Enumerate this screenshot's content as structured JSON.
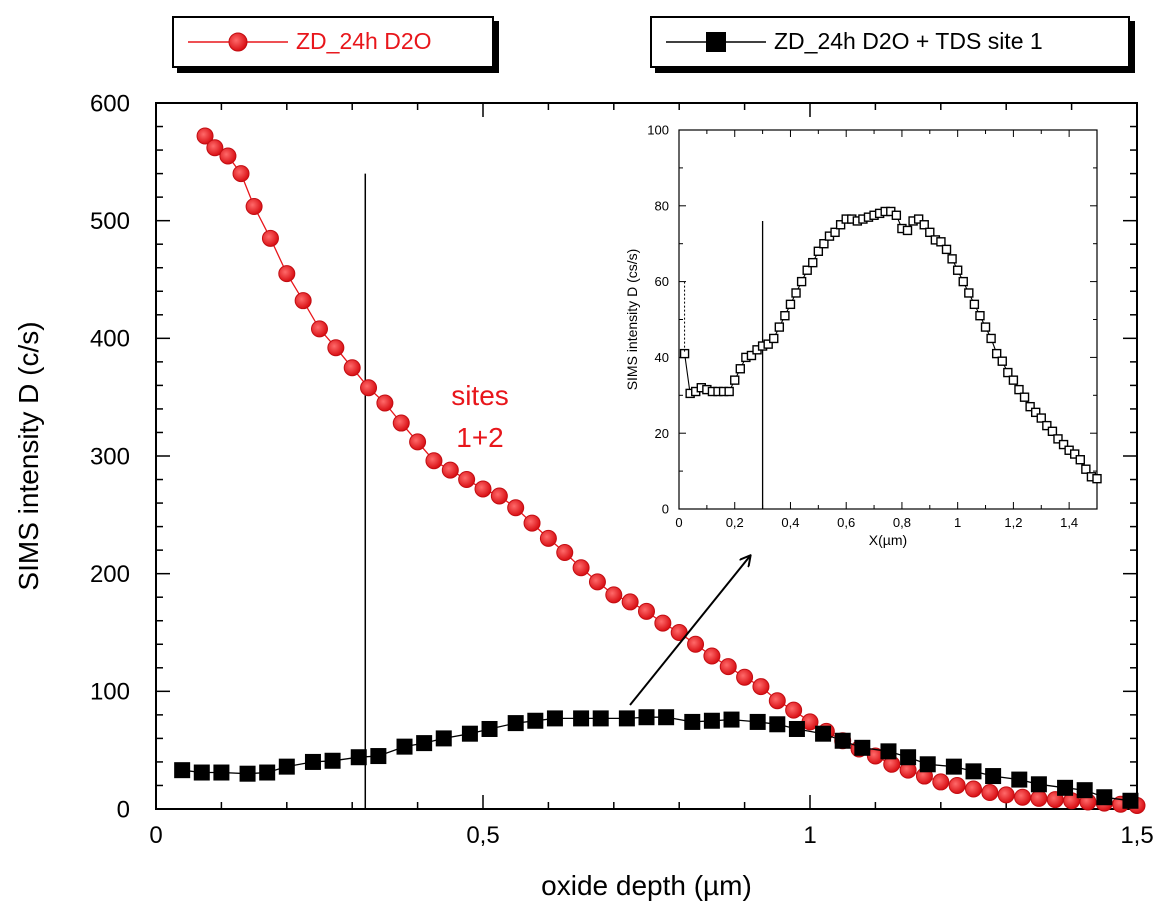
{
  "chart_data": [
    {
      "type": "scatter",
      "xlabel": "oxide depth (µm)",
      "ylabel": "SIMS intensity D (c/s)",
      "xlim": [
        0,
        1.5
      ],
      "ylim": [
        0,
        600
      ],
      "x_ticks": [
        0,
        0.5,
        1,
        1.5
      ],
      "x_tick_labels": [
        "0",
        "0,5",
        "1",
        "1,5"
      ],
      "y_ticks": [
        0,
        100,
        200,
        300,
        400,
        500,
        600
      ],
      "y_tick_labels": [
        "0",
        "100",
        "200",
        "300",
        "400",
        "500",
        "600"
      ],
      "vline_x": 0.32,
      "vline_top": 540,
      "annotation": [
        "sites",
        "1+2"
      ],
      "annotation_color": "#e8161b",
      "series": [
        {
          "name": "ZD_24h D2O",
          "color": "#e8161b",
          "marker": "circle",
          "x": [
            0.075,
            0.09,
            0.11,
            0.13,
            0.15,
            0.175,
            0.2,
            0.225,
            0.25,
            0.275,
            0.3,
            0.325,
            0.35,
            0.375,
            0.4,
            0.425,
            0.45,
            0.475,
            0.5,
            0.525,
            0.55,
            0.575,
            0.6,
            0.625,
            0.65,
            0.675,
            0.7,
            0.725,
            0.75,
            0.775,
            0.8,
            0.825,
            0.85,
            0.875,
            0.9,
            0.925,
            0.95,
            0.975,
            1.0,
            1.025,
            1.05,
            1.075,
            1.1,
            1.125,
            1.15,
            1.175,
            1.2,
            1.225,
            1.25,
            1.275,
            1.3,
            1.325,
            1.35,
            1.375,
            1.4,
            1.425,
            1.45,
            1.475,
            1.5
          ],
          "y": [
            572,
            562,
            555,
            540,
            512,
            485,
            455,
            432,
            408,
            392,
            375,
            358,
            345,
            328,
            312,
            296,
            288,
            280,
            272,
            266,
            256,
            243,
            230,
            218,
            205,
            193,
            182,
            176,
            168,
            158,
            150,
            140,
            130,
            121,
            112,
            104,
            92,
            84,
            74,
            66,
            58,
            51,
            45,
            38,
            33,
            28,
            23,
            20,
            17,
            14,
            12,
            10,
            9,
            8,
            7,
            6,
            5,
            4,
            3
          ]
        },
        {
          "name": "ZD_24h D2O + TDS site 1",
          "color": "#000000",
          "marker": "square",
          "x": [
            0.04,
            0.07,
            0.1,
            0.14,
            0.17,
            0.2,
            0.24,
            0.27,
            0.31,
            0.34,
            0.38,
            0.41,
            0.44,
            0.48,
            0.51,
            0.55,
            0.58,
            0.61,
            0.65,
            0.68,
            0.72,
            0.75,
            0.78,
            0.82,
            0.85,
            0.88,
            0.92,
            0.95,
            0.98,
            1.02,
            1.05,
            1.08,
            1.12,
            1.15,
            1.18,
            1.22,
            1.25,
            1.28,
            1.32,
            1.35,
            1.39,
            1.42,
            1.45,
            1.49
          ],
          "y": [
            33,
            31,
            31,
            30,
            31,
            36,
            40,
            41,
            44,
            45,
            53,
            56,
            60,
            64,
            68,
            73,
            75,
            77,
            77,
            77,
            77,
            78,
            78,
            74,
            75,
            76,
            74,
            72,
            68,
            64,
            58,
            52,
            49,
            44,
            38,
            36,
            32,
            28,
            25,
            21,
            18,
            16,
            10,
            7
          ]
        }
      ]
    },
    {
      "type": "scatter",
      "xlabel": "X(µm)",
      "ylabel": "SIMS intensity D (cs/s)",
      "xlim": [
        0,
        1.5
      ],
      "ylim": [
        0,
        100
      ],
      "x_ticks": [
        0,
        0.2,
        0.4,
        0.6,
        0.8,
        1,
        1.2,
        1.4
      ],
      "x_tick_labels": [
        "0",
        "0,2",
        "0,4",
        "0,6",
        "0,8",
        "1",
        "1,2",
        "1,4"
      ],
      "y_ticks": [
        0,
        20,
        40,
        60,
        80,
        100
      ],
      "y_tick_labels": [
        "0",
        "20",
        "40",
        "60",
        "80",
        "100"
      ],
      "vline_x": 0.3,
      "vline_top": 76,
      "series": [
        {
          "color": "#000000",
          "marker": "square-open",
          "x": [
            0.02,
            0.04,
            0.06,
            0.08,
            0.1,
            0.12,
            0.14,
            0.16,
            0.18,
            0.2,
            0.22,
            0.24,
            0.26,
            0.28,
            0.3,
            0.32,
            0.34,
            0.36,
            0.38,
            0.4,
            0.42,
            0.44,
            0.46,
            0.48,
            0.5,
            0.52,
            0.54,
            0.56,
            0.58,
            0.6,
            0.62,
            0.64,
            0.66,
            0.68,
            0.7,
            0.72,
            0.74,
            0.76,
            0.78,
            0.8,
            0.82,
            0.84,
            0.86,
            0.88,
            0.9,
            0.92,
            0.94,
            0.96,
            0.98,
            1.0,
            1.02,
            1.04,
            1.06,
            1.08,
            1.1,
            1.12,
            1.14,
            1.16,
            1.18,
            1.2,
            1.22,
            1.24,
            1.26,
            1.28,
            1.3,
            1.32,
            1.34,
            1.36,
            1.38,
            1.4,
            1.42,
            1.44,
            1.46,
            1.48,
            1.5
          ],
          "y": [
            41,
            30.5,
            31,
            32,
            31.5,
            31,
            31,
            31,
            31,
            34,
            37,
            40,
            40.5,
            42,
            43,
            43.5,
            45,
            48,
            51,
            54,
            57,
            60,
            63,
            65,
            68,
            70,
            72,
            73,
            75,
            76.5,
            76.5,
            76,
            76.5,
            77,
            77.5,
            78,
            78.5,
            78.5,
            77.5,
            74,
            73.5,
            76,
            76.5,
            75,
            73,
            71,
            70.5,
            68.5,
            66,
            63,
            60,
            57,
            54,
            51,
            48,
            45,
            41,
            39,
            36,
            34,
            31.5,
            29.5,
            27,
            25.5,
            24,
            22,
            20.5,
            18.5,
            17,
            15.5,
            14.5,
            13,
            10.5,
            8.5,
            8
          ]
        }
      ]
    }
  ],
  "legend": {
    "series1_label": "ZD_24h D2O",
    "series2_label": "ZD_24h D2O + TDS site 1"
  }
}
